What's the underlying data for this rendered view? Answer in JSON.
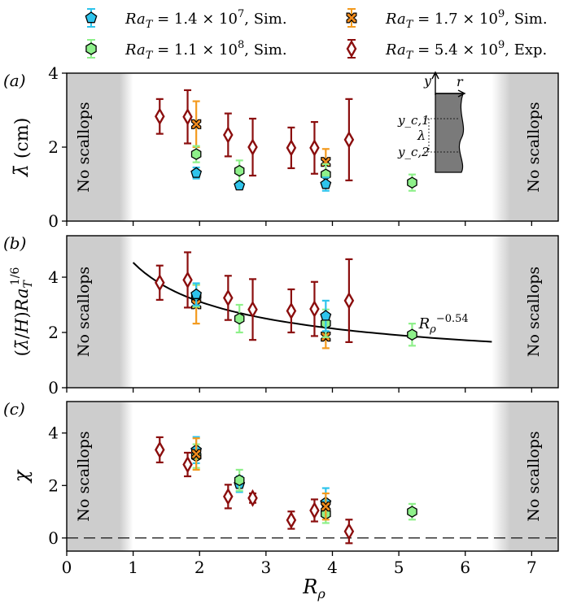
{
  "legend": [
    {
      "label": "Ra_T = 1.4 × 10^7, Sim.",
      "latex": {
        "ra": "Ra",
        "sub": "T",
        "eq": " = 1.4 × 10",
        "exp": "7",
        "tail": ", Sim."
      },
      "marker": "pentagon",
      "fill": "#2ec4ec",
      "err": "#2ec4ec"
    },
    {
      "label": "Ra_T = 1.7 × 10^9, Sim.",
      "latex": {
        "ra": "Ra",
        "sub": "T",
        "eq": " = 1.7 × 10",
        "exp": "9",
        "tail": ", Sim."
      },
      "marker": "x-square",
      "fill": "#f28c1e",
      "err": "#f39a1e"
    },
    {
      "label": "Ra_T = 1.1 × 10^8, Sim.",
      "latex": {
        "ra": "Ra",
        "sub": "T",
        "eq": " = 1.1 × 10",
        "exp": "8",
        "tail": ", Sim."
      },
      "marker": "hexagon",
      "fill": "#8ef08a",
      "err": "#8ef08a"
    },
    {
      "label": "Ra_T = 5.4 × 10^9, Exp.",
      "latex": {
        "ra": "Ra",
        "sub": "T",
        "eq": " = 5.4 × 10",
        "exp": "9",
        "tail": ", Exp."
      },
      "marker": "diamond",
      "fill": "#ffffff",
      "err": "#8b0e0e"
    }
  ],
  "shading": {
    "text": "No scallops",
    "left_boundary_R": 1.0,
    "right_boundary_R": 6.4
  },
  "x_axis": {
    "label": "R_ρ",
    "lim": [
      0,
      7.4
    ],
    "ticks": [
      0,
      1,
      2,
      3,
      4,
      5,
      6,
      7
    ]
  },
  "chart_data": [
    {
      "type": "scatter",
      "panel": "(a)",
      "ylabel": "λ̄ (cm)",
      "ylim": [
        0,
        4
      ],
      "yticks": [
        0,
        2,
        4
      ],
      "series": [
        {
          "name": "Ra_T = 5.4 × 10^9, Exp.",
          "x": [
            1.4,
            1.82,
            2.43,
            2.8,
            3.38,
            3.73,
            4.25
          ],
          "y": [
            2.83,
            2.82,
            2.33,
            2.0,
            1.98,
            1.98,
            2.2
          ],
          "err": [
            0.47,
            0.72,
            0.58,
            0.77,
            0.55,
            0.7,
            1.1
          ]
        },
        {
          "name": "Ra_T = 1.7 × 10^9, Sim.",
          "x": [
            1.95,
            3.9
          ],
          "y": [
            2.62,
            1.6
          ],
          "err": [
            0.62,
            0.35
          ]
        },
        {
          "name": "Ra_T = 1.1 × 10^8, Sim.",
          "x": [
            1.95,
            2.6,
            3.9,
            5.2
          ],
          "y": [
            1.81,
            1.36,
            1.26,
            1.04
          ],
          "err": [
            0.22,
            0.28,
            0.28,
            0.22
          ]
        },
        {
          "name": "Ra_T = 1.4 × 10^7, Sim.",
          "x": [
            1.95,
            2.6,
            3.9
          ],
          "y": [
            1.3,
            0.96,
            1.0
          ],
          "err": [
            0.15,
            0.1,
            0.18
          ]
        }
      ],
      "inset": {
        "y": "y",
        "r": "r",
        "yc1": "y_c,1",
        "yc2": "y_c,2",
        "lambda": "λ"
      }
    },
    {
      "type": "scatter",
      "panel": "(b)",
      "ylabel": "(λ̄/H)Ra_T^(1/6)",
      "ylim": [
        0,
        5.5
      ],
      "yticks": [
        0,
        2,
        4
      ],
      "fit": {
        "label": "R_ρ^(-0.54)",
        "coef": 4.53,
        "exponent": -0.54,
        "x_range": [
          1.0,
          6.4
        ]
      },
      "series": [
        {
          "name": "Ra_T = 5.4 × 10^9, Exp.",
          "x": [
            1.4,
            1.82,
            2.43,
            2.8,
            3.38,
            3.73,
            4.25
          ],
          "y": [
            3.8,
            3.9,
            3.25,
            2.83,
            2.78,
            2.85,
            3.15
          ],
          "err": [
            0.62,
            1.0,
            0.8,
            1.1,
            0.78,
            0.98,
            1.5
          ]
        },
        {
          "name": "Ra_T = 1.7 × 10^9, Sim.",
          "x": [
            1.95,
            3.9
          ],
          "y": [
            3.02,
            1.85
          ],
          "err": [
            0.7,
            0.42
          ]
        },
        {
          "name": "Ra_T = 1.1 × 10^8, Sim.",
          "x": [
            1.95,
            2.6,
            3.9,
            5.2
          ],
          "y": [
            3.33,
            2.5,
            2.33,
            1.92
          ],
          "err": [
            0.4,
            0.5,
            0.5,
            0.4
          ]
        },
        {
          "name": "Ra_T = 1.4 × 10^7, Sim.",
          "x": [
            1.95,
            3.9
          ],
          "y": [
            3.38,
            2.6
          ],
          "err": [
            0.4,
            0.55
          ]
        }
      ]
    },
    {
      "type": "scatter",
      "panel": "(c)",
      "ylabel": "χ",
      "ylim": [
        -0.5,
        5.2
      ],
      "yticks": [
        0,
        2,
        4
      ],
      "series": [
        {
          "name": "Ra_T = 5.4 × 10^9, Exp.",
          "x": [
            1.4,
            1.82,
            2.43,
            2.8,
            3.38,
            3.73,
            4.25
          ],
          "y": [
            3.36,
            2.8,
            1.58,
            1.52,
            0.68,
            1.05,
            0.25
          ],
          "err": [
            0.48,
            0.45,
            0.45,
            0.18,
            0.33,
            0.42,
            0.45
          ]
        },
        {
          "name": "Ra_T = 1.4 × 10^7, Sim.",
          "x": [
            1.95,
            2.6,
            3.9
          ],
          "y": [
            3.35,
            2.05,
            1.35
          ],
          "err": [
            0.5,
            0.3,
            0.55
          ]
        },
        {
          "name": "Ra_T = 1.1 × 10^8, Sim.",
          "x": [
            1.95,
            2.6,
            3.9,
            5.2
          ],
          "y": [
            3.12,
            2.2,
            0.92,
            1.0
          ],
          "err": [
            0.45,
            0.4,
            0.35,
            0.3
          ]
        },
        {
          "name": "Ra_T = 1.7 × 10^9, Sim.",
          "x": [
            1.95,
            3.9
          ],
          "y": [
            3.2,
            1.2
          ],
          "err": [
            0.6,
            0.5
          ]
        }
      ]
    }
  ]
}
